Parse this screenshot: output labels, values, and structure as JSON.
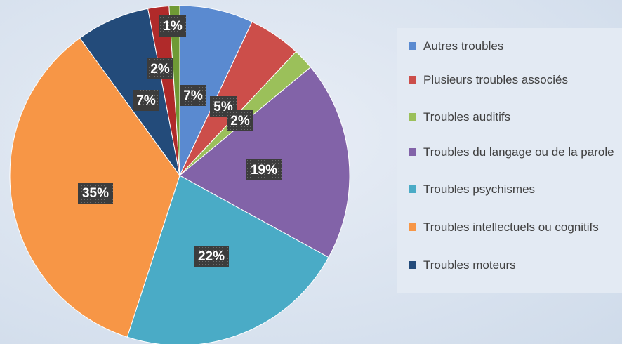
{
  "chart_data": {
    "type": "pie",
    "categories": [
      "Autres troubles",
      "Plusieurs troubles associés",
      "Troubles auditifs",
      "Troubles du langage ou de la parole",
      "Troubles psychismes",
      "Troubles intellectuels ou cognitifs",
      "Troubles moteurs",
      null,
      null
    ],
    "values": [
      7,
      5,
      2,
      19,
      22,
      35,
      7,
      2,
      1
    ],
    "value_labels": [
      "7%",
      "5%",
      "2%",
      "19%",
      "22%",
      "35%",
      "7%",
      "2%",
      "1%"
    ],
    "colors": [
      "#5a8ad0",
      "#cc4e4a",
      "#9bc05a",
      "#8263a8",
      "#4aabc6",
      "#f79646",
      "#234b7a",
      "#b02a2a",
      "#6f9a35"
    ],
    "legend": "right"
  }
}
